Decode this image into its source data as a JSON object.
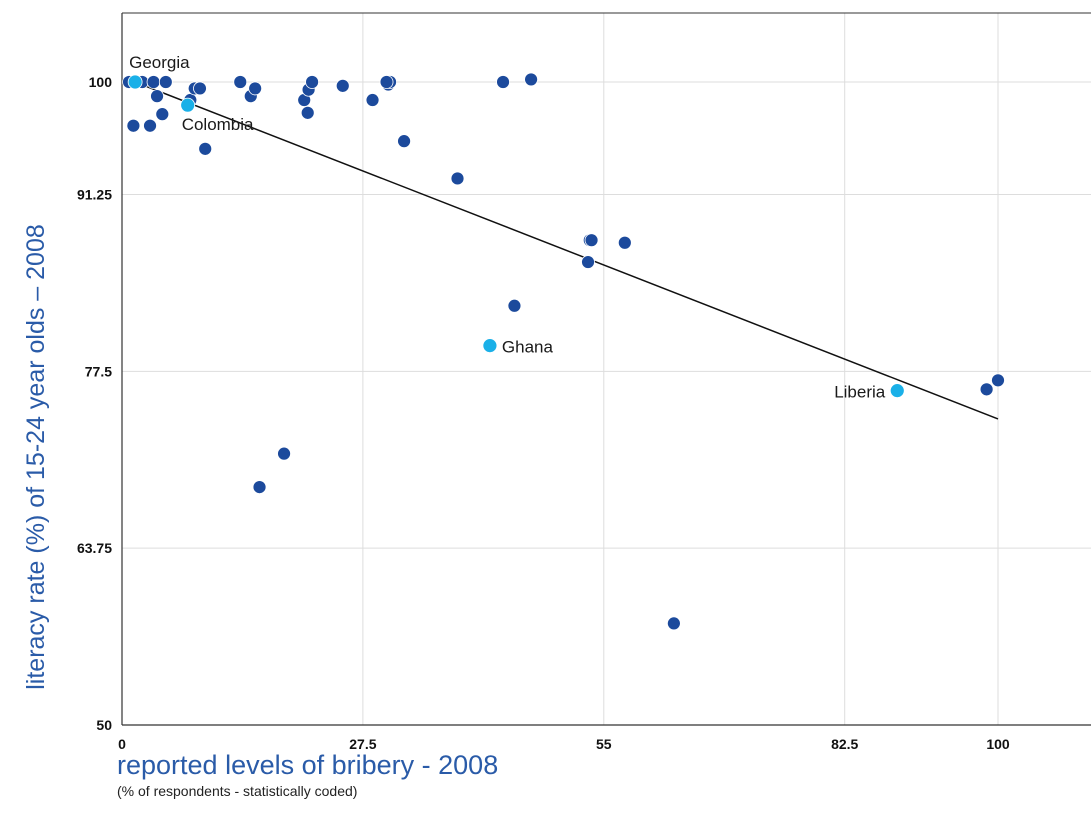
{
  "chart_data": {
    "type": "scatter",
    "xlabel": "reported levels of bribery - 2008",
    "xlabel_note": "(% of respondents - statistically coded)",
    "ylabel": "literacy rate (%) of 15-24 year olds – 2008",
    "xlim": [
      0,
      108
    ],
    "ylim": [
      50,
      105
    ],
    "x_ticks": [
      0,
      27.5,
      55,
      82.5,
      100
    ],
    "x_tick_labels": [
      "0",
      "27.5",
      "55",
      "82.5",
      "100"
    ],
    "y_ticks": [
      50,
      63.75,
      77.5,
      91.25,
      100
    ],
    "y_tick_labels": [
      "50",
      "63.75",
      "77.5",
      "91.25",
      "100"
    ],
    "grid": true,
    "colors": {
      "point": "#1c4a9c",
      "highlight": "#1ab0e8",
      "trend": "#111111",
      "grid": "#dddddd",
      "axis": "#333333"
    },
    "points": [
      {
        "x": 0.8,
        "y": 100
      },
      {
        "x": 1.3,
        "y": 96.6
      },
      {
        "x": 2.3,
        "y": 100
      },
      {
        "x": 3.2,
        "y": 96.6
      },
      {
        "x": 3.6,
        "y": 100
      },
      {
        "x": 4.0,
        "y": 98.9
      },
      {
        "x": 4.6,
        "y": 97.5
      },
      {
        "x": 5.0,
        "y": 100
      },
      {
        "x": 7.8,
        "y": 98.6
      },
      {
        "x": 8.3,
        "y": 99.5
      },
      {
        "x": 8.9,
        "y": 99.5
      },
      {
        "x": 9.5,
        "y": 94.8
      },
      {
        "x": 13.5,
        "y": 100
      },
      {
        "x": 14.7,
        "y": 98.9
      },
      {
        "x": 15.2,
        "y": 99.5
      },
      {
        "x": 15.7,
        "y": 68.5
      },
      {
        "x": 18.5,
        "y": 71.1
      },
      {
        "x": 20.8,
        "y": 98.6
      },
      {
        "x": 21.2,
        "y": 97.6
      },
      {
        "x": 21.3,
        "y": 99.4
      },
      {
        "x": 21.7,
        "y": 100
      },
      {
        "x": 25.2,
        "y": 99.7
      },
      {
        "x": 28.6,
        "y": 98.6
      },
      {
        "x": 30.4,
        "y": 99.8
      },
      {
        "x": 30.6,
        "y": 100
      },
      {
        "x": 30.2,
        "y": 100
      },
      {
        "x": 32.2,
        "y": 95.4
      },
      {
        "x": 38.3,
        "y": 92.5
      },
      {
        "x": 43.5,
        "y": 100
      },
      {
        "x": 44.8,
        "y": 82.6
      },
      {
        "x": 46.7,
        "y": 100.2
      },
      {
        "x": 53.2,
        "y": 86.0
      },
      {
        "x": 53.4,
        "y": 87.7
      },
      {
        "x": 53.6,
        "y": 87.7
      },
      {
        "x": 57.4,
        "y": 87.5
      },
      {
        "x": 63.0,
        "y": 57.9
      },
      {
        "x": 98.7,
        "y": 76.1
      },
      {
        "x": 100.0,
        "y": 76.8
      }
    ],
    "highlighted_points": [
      {
        "x": 1.5,
        "y": 100,
        "label": "Georgia"
      },
      {
        "x": 7.5,
        "y": 98.2,
        "label": "Colombia"
      },
      {
        "x": 42.0,
        "y": 79.5,
        "label": "Ghana"
      },
      {
        "x": 88.5,
        "y": 76.0,
        "label": "Liberia"
      }
    ],
    "trend_line": {
      "x": [
        1.5,
        100
      ],
      "y": [
        100,
        73.8
      ]
    }
  }
}
